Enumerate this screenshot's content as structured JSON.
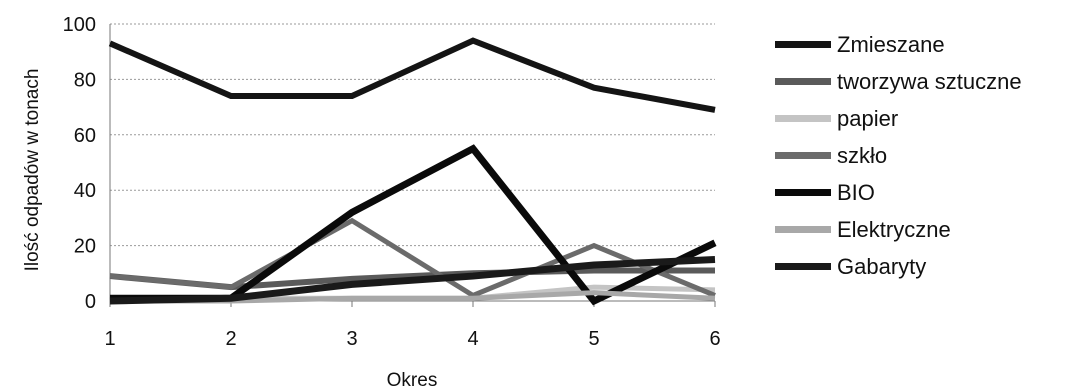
{
  "chart_data": {
    "type": "line",
    "xlabel": "Okres",
    "ylabel": "Ilość odpadów w tonach",
    "x": [
      1,
      2,
      3,
      4,
      5,
      6
    ],
    "xticks": [
      "1",
      "2",
      "3",
      "4",
      "5",
      "6"
    ],
    "ylim": [
      0,
      100
    ],
    "yticks": [
      "0",
      "20",
      "40",
      "60",
      "80",
      "100"
    ],
    "grid": true,
    "legend_position": "right",
    "series": [
      {
        "name": "Zmieszane",
        "values": [
          93,
          74,
          74,
          94,
          77,
          69
        ],
        "color": "#141414"
      },
      {
        "name": "tworzywa sztuczne",
        "values": [
          9,
          5,
          8,
          10,
          11,
          11
        ],
        "color": "#5a5a5a"
      },
      {
        "name": "papier",
        "values": [
          1,
          1,
          1,
          1,
          5,
          4
        ],
        "color": "#c4c4c4"
      },
      {
        "name": "szkło",
        "values": [
          9,
          5,
          29,
          2,
          20,
          2
        ],
        "color": "#6b6b6b"
      },
      {
        "name": "BIO",
        "values": [
          1,
          1,
          32,
          55,
          0,
          21
        ],
        "color": "#0a0a0a"
      },
      {
        "name": "Elektryczne",
        "values": [
          0,
          0,
          1,
          1,
          3,
          1
        ],
        "color": "#a8a8a8"
      },
      {
        "name": "Gabaryty",
        "values": [
          0,
          1,
          6,
          9,
          13,
          15
        ],
        "color": "#1a1a1a"
      }
    ]
  }
}
